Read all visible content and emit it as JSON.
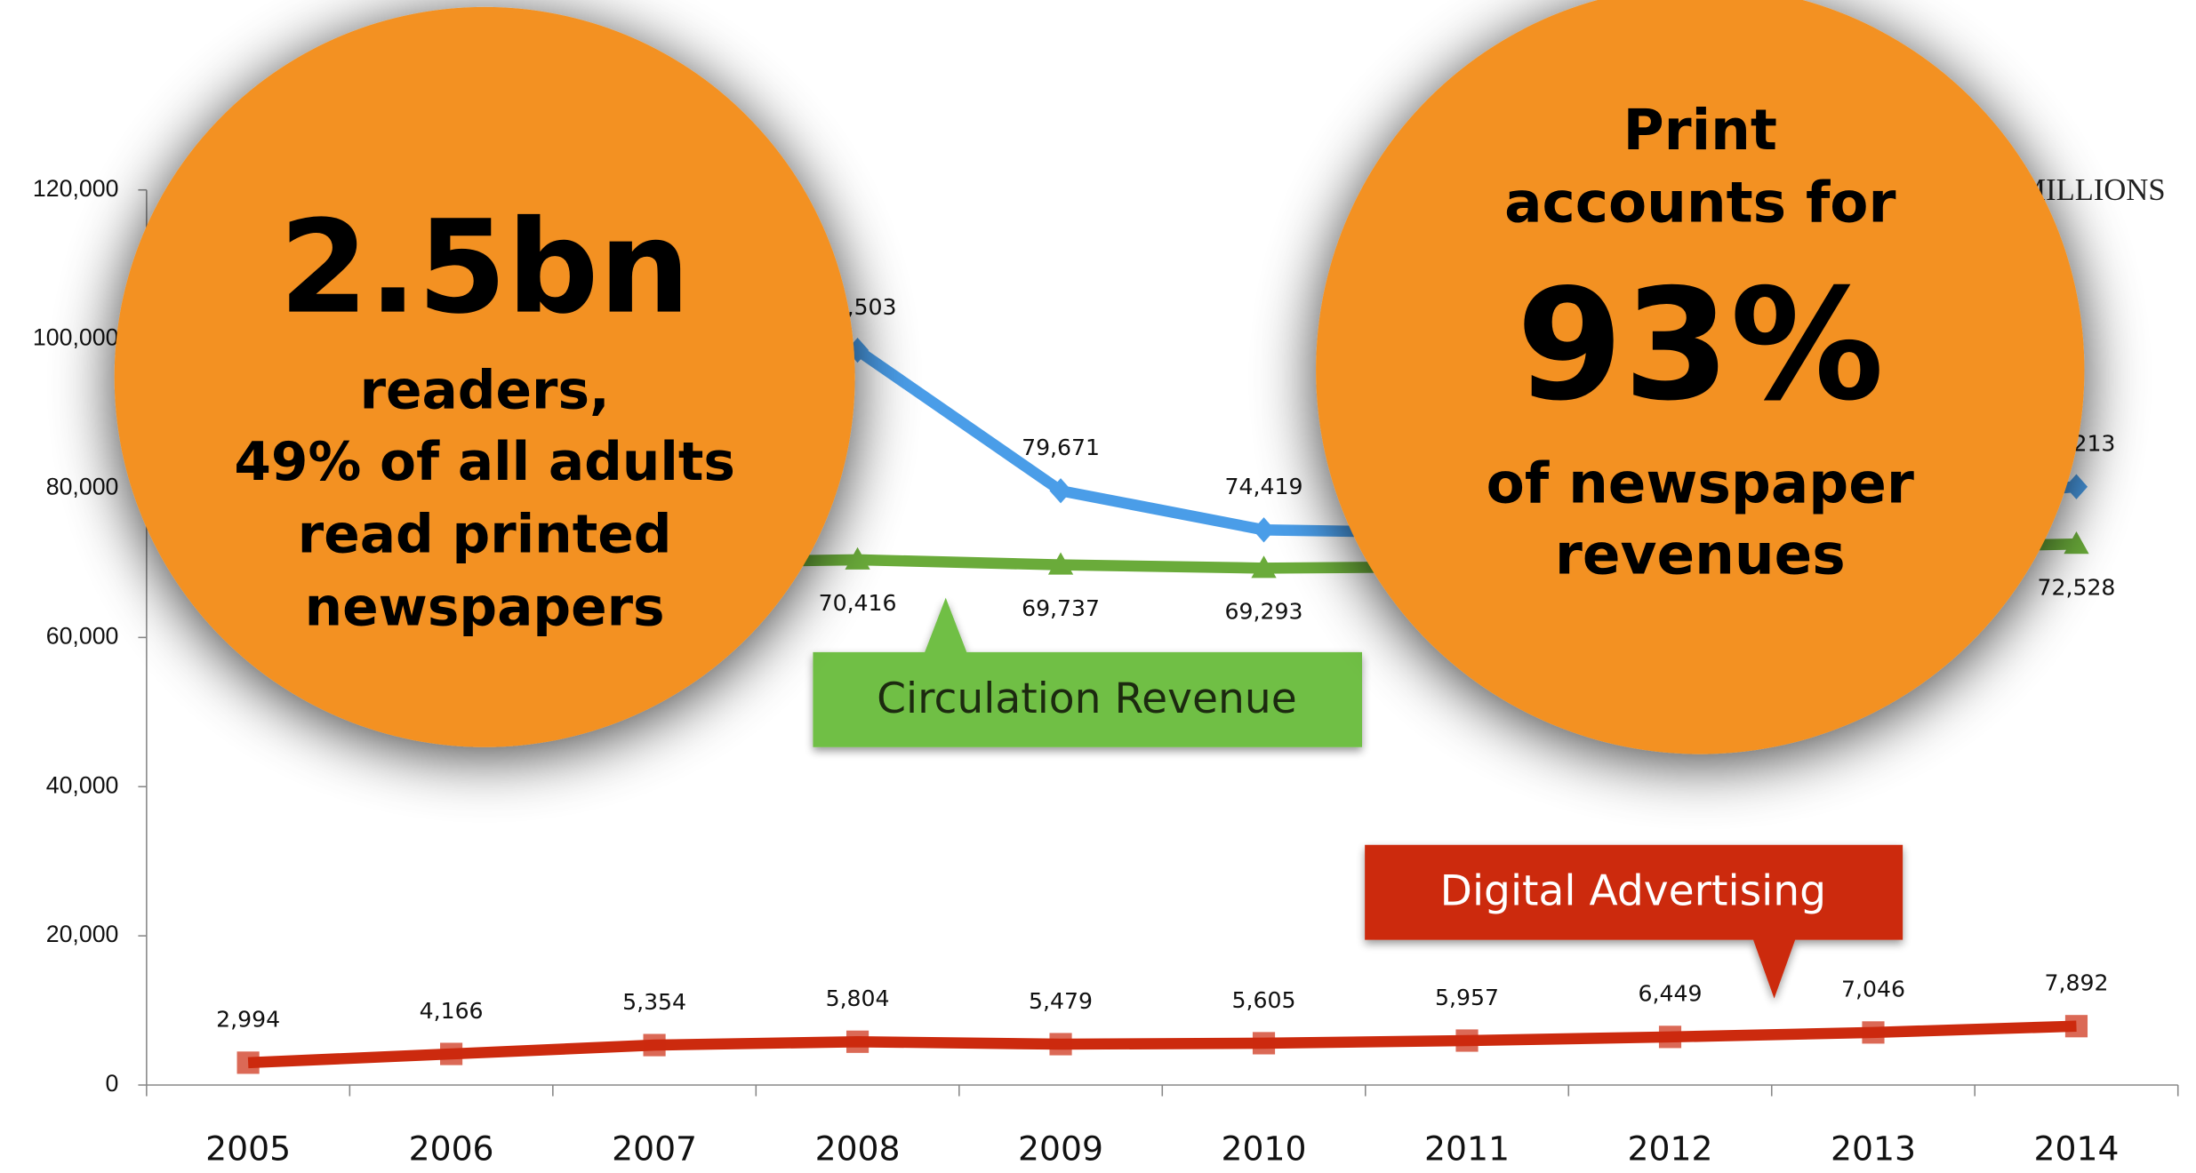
{
  "chart_data": {
    "type": "line",
    "categories": [
      "2005",
      "2006",
      "2007",
      "2008",
      "2009",
      "2010",
      "2011",
      "2012",
      "2013",
      "2014"
    ],
    "series": [
      {
        "color": "#4a9de8",
        "marker": "diamond",
        "values": [
          null,
          null,
          null,
          98503,
          79671,
          74419,
          74000,
          null,
          78000,
          80213
        ],
        "value_labels": [
          null,
          null,
          null,
          "98,503",
          "79,671",
          "74,419",
          null,
          null,
          null,
          "80,213"
        ],
        "label_pos": "above"
      },
      {
        "name": "Circulation Revenue",
        "color": "#6aab3a",
        "marker": "triangle",
        "values": [
          null,
          null,
          70000,
          70416,
          69737,
          69293,
          69500,
          null,
          72000,
          72528
        ],
        "value_labels": [
          null,
          null,
          null,
          "70,416",
          "69,737",
          "69,293",
          null,
          null,
          null,
          "72,528"
        ],
        "label_pos": "below"
      },
      {
        "name": "Digital Advertising",
        "color": "#cc2a0e",
        "marker": "square",
        "values": [
          2994,
          4166,
          5354,
          5804,
          5479,
          5605,
          5957,
          6449,
          7046,
          7892
        ],
        "value_labels": [
          "2,994",
          "4,166",
          "5,354",
          "5,804",
          "5,479",
          "5,605",
          "5,957",
          "6,449",
          "7,046",
          "7,892"
        ],
        "label_pos": "above"
      }
    ],
    "ylim": [
      0,
      120000
    ],
    "yticks": [
      0,
      {
        "value": 20000,
        "label": "20,000"
      },
      {
        "value": 40000,
        "label": "40,000"
      },
      {
        "value": 60000,
        "label": "60,000"
      },
      {
        "value": 80000,
        "label": "80,000"
      },
      {
        "value": 100000,
        "label": "100,000"
      },
      {
        "value": 120000,
        "label": "120,000"
      }
    ],
    "logo": "MILLIONS",
    "callouts": [
      {
        "lines": [
          "2.5bn",
          "readers,",
          "49% of all adults",
          "read printed",
          "newspapers"
        ]
      },
      {
        "lines": [
          "Print",
          "accounts for",
          "93%",
          "of newspaper",
          "revenues"
        ]
      }
    ]
  }
}
